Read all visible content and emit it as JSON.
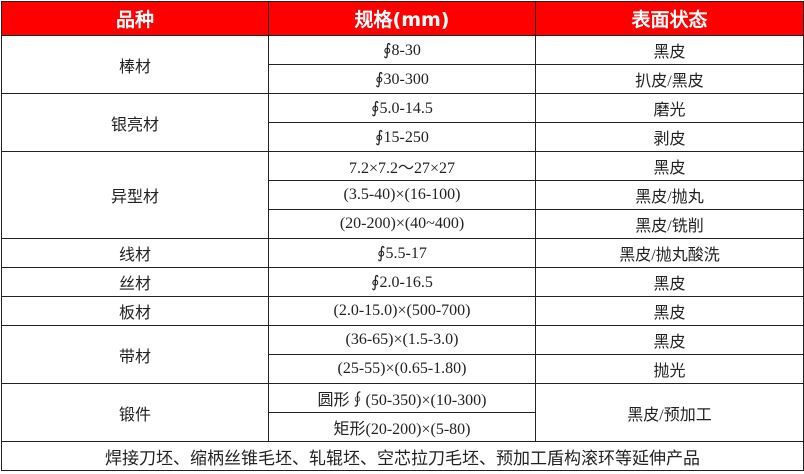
{
  "header": {
    "col1": "品种",
    "col2": "规格(mm)",
    "col3": "表面状态"
  },
  "header_color": "#ff0000",
  "groups": [
    {
      "name": "棒材",
      "rows": [
        {
          "spec": "∮8-30",
          "surface": "黑皮"
        },
        {
          "spec": "∮30-300",
          "surface": "扒皮/黑皮"
        }
      ]
    },
    {
      "name": "银亮材",
      "rows": [
        {
          "spec": "∮5.0-14.5",
          "surface": "磨光"
        },
        {
          "spec": "∮15-250",
          "surface": "剥皮"
        }
      ]
    },
    {
      "name": "异型材",
      "rows": [
        {
          "spec": "7.2×7.2～27×27",
          "surface": "黑皮"
        },
        {
          "spec": "(3.5-40)×(16-100)",
          "surface": "黑皮/抛丸"
        },
        {
          "spec": "(20-200)×(40~400)",
          "surface": "黑皮/铣削"
        }
      ]
    },
    {
      "name": "线材",
      "rows": [
        {
          "spec": "∮5.5-17",
          "surface": "黑皮/抛丸酸洗"
        }
      ]
    },
    {
      "name": "丝材",
      "rows": [
        {
          "spec": "∮2.0-16.5",
          "surface": "黑皮"
        }
      ]
    },
    {
      "name": "板材",
      "rows": [
        {
          "spec": "(2.0-15.0)×(500-700)",
          "surface": "黑皮"
        }
      ]
    },
    {
      "name": "带材",
      "rows": [
        {
          "spec": "(36-65)×(1.5-3.0)",
          "surface": "黑皮"
        },
        {
          "spec": "(25-55)×(0.65-1.80)",
          "surface": "抛光"
        }
      ]
    },
    {
      "name": "锻件",
      "surface": "黑皮/预加工",
      "rows": [
        {
          "spec": "圆形∮(50-350)×(10-300)"
        },
        {
          "spec": "矩形(20-200)×(5-80)"
        }
      ]
    }
  ],
  "footer": "焊接刀坯、缩柄丝锥毛坯、轧辊坯、空芯拉刀毛坯、预加工盾构滚环等延伸产品"
}
